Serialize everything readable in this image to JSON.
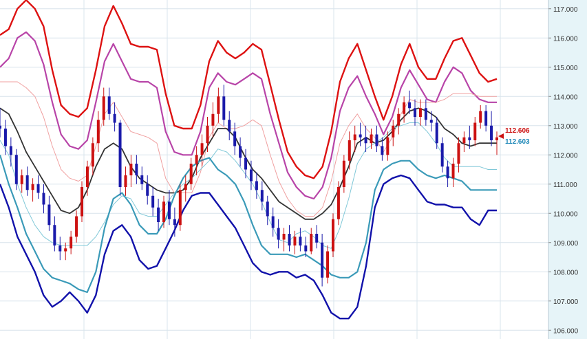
{
  "chart_data": {
    "type": "line",
    "title": "",
    "xlabel": "",
    "ylabel": "",
    "ylim": [
      105.7,
      117.3
    ],
    "y_ticks": [
      "106.000",
      "107.000",
      "108.000",
      "109.000",
      "110.000",
      "111.000",
      "112.000",
      "113.000",
      "114.000",
      "115.000",
      "116.000",
      "117.000"
    ],
    "grid": true,
    "legend": "none",
    "price_tags": [
      {
        "text": "112.606",
        "value": 112.606,
        "color": "#cc1111"
      },
      {
        "text": "112.603",
        "value": 112.603,
        "color": "#1e88b8"
      }
    ],
    "colors": {
      "up_candle": "#cc1111",
      "down_candle": "#1a1aaa",
      "outer_upper": "#dd1111",
      "outer_lower": "#1111aa",
      "band2_upper": "#b844a8",
      "band2_lower": "#3a9ab8",
      "band1_upper": "#f0a0a0",
      "band1_lower": "#80c8d8",
      "middle": "#333333",
      "axis_bg": "#e6f4f8",
      "grid": "#d8e4ec"
    },
    "series": [
      {
        "key": "outer_upper",
        "values": [
          116.1,
          116.3,
          117.0,
          117.3,
          117.0,
          116.4,
          114.9,
          113.7,
          113.4,
          113.3,
          113.6,
          114.9,
          116.4,
          117.1,
          116.5,
          115.8,
          115.7,
          115.7,
          115.6,
          114.1,
          113.0,
          112.9,
          112.9,
          113.7,
          115.2,
          115.9,
          115.5,
          115.3,
          115.5,
          115.8,
          115.6,
          114.4,
          113.2,
          112.1,
          111.6,
          111.3,
          111.2,
          111.6,
          112.8,
          114.5,
          115.3,
          115.8,
          114.9,
          114.0,
          113.2,
          114.0,
          115.1,
          115.8,
          115.0,
          114.6,
          114.6,
          115.3,
          115.9,
          116.0,
          115.4,
          114.8,
          114.5,
          114.6
        ]
      },
      {
        "key": "band2_upper",
        "values": [
          115.0,
          115.3,
          116.0,
          116.2,
          115.9,
          115.1,
          113.8,
          112.7,
          112.3,
          112.2,
          112.5,
          113.8,
          115.2,
          115.8,
          115.2,
          114.6,
          114.5,
          114.5,
          114.3,
          112.8,
          112.1,
          112.0,
          112.0,
          112.8,
          114.3,
          114.8,
          114.5,
          114.4,
          114.6,
          114.8,
          114.6,
          113.4,
          112.4,
          111.4,
          110.9,
          110.6,
          110.5,
          110.9,
          111.9,
          113.5,
          114.3,
          114.7,
          114.0,
          113.4,
          112.7,
          113.3,
          114.3,
          114.9,
          114.4,
          113.9,
          113.8,
          114.5,
          115.0,
          114.8,
          114.2,
          113.9,
          113.8,
          113.8
        ]
      },
      {
        "key": "band1_upper",
        "values": [
          114.5,
          114.5,
          114.5,
          114.3,
          114.0,
          113.3,
          112.3,
          111.5,
          111.2,
          111.1,
          111.3,
          112.3,
          113.4,
          113.8,
          113.3,
          112.8,
          112.7,
          112.6,
          112.4,
          111.2,
          110.7,
          110.7,
          110.7,
          111.4,
          112.6,
          113.1,
          112.9,
          112.9,
          113.0,
          113.2,
          113.0,
          112.0,
          111.1,
          110.5,
          110.1,
          109.9,
          109.9,
          110.2,
          111.1,
          112.4,
          113.0,
          113.4,
          112.9,
          112.6,
          112.1,
          112.6,
          113.4,
          113.9,
          113.8,
          113.8,
          113.8,
          113.9,
          114.1,
          114.1,
          114.1,
          114.0,
          114.0,
          114.0
        ]
      },
      {
        "key": "middle",
        "values": [
          113.6,
          113.4,
          112.8,
          112.1,
          111.6,
          111.1,
          110.6,
          110.1,
          110.0,
          110.2,
          110.8,
          111.6,
          112.2,
          112.4,
          112.2,
          111.6,
          111.2,
          111.0,
          110.8,
          110.7,
          110.7,
          110.8,
          111.2,
          111.9,
          112.4,
          112.9,
          112.9,
          112.6,
          112.0,
          111.5,
          111.2,
          110.8,
          110.4,
          110.2,
          110.0,
          109.8,
          109.8,
          110.0,
          110.3,
          110.9,
          111.6,
          112.4,
          112.6,
          112.4,
          112.5,
          112.8,
          113.2,
          113.5,
          113.6,
          113.5,
          113.3,
          112.9,
          112.7,
          112.4,
          112.3,
          112.4,
          112.4,
          112.4
        ]
      },
      {
        "key": "band1_lower",
        "values": [
          112.5,
          112.0,
          111.0,
          110.2,
          109.6,
          109.2,
          109.0,
          108.9,
          108.9,
          108.9,
          108.9,
          109.2,
          109.7,
          110.3,
          110.6,
          110.5,
          110.0,
          109.9,
          109.9,
          110.3,
          110.7,
          111.0,
          111.2,
          111.5,
          111.8,
          112.2,
          112.1,
          111.8,
          111.4,
          111.0,
          110.4,
          109.7,
          109.1,
          109.0,
          109.3,
          109.4,
          109.2,
          108.9,
          108.8,
          109.5,
          110.5,
          111.7,
          112.2,
          112.4,
          112.6,
          112.9,
          113.0,
          113.1,
          113.1,
          112.8,
          112.4,
          111.9,
          111.6,
          111.6,
          111.6,
          111.6,
          111.5,
          111.5
        ]
      },
      {
        "key": "band2_lower",
        "values": [
          112.0,
          111.0,
          110.2,
          109.3,
          108.7,
          108.1,
          107.8,
          107.7,
          107.6,
          107.4,
          107.3,
          108.0,
          109.5,
          110.5,
          110.7,
          110.3,
          109.6,
          109.3,
          109.3,
          109.8,
          110.6,
          111.2,
          111.6,
          111.8,
          111.9,
          111.5,
          111.3,
          111.0,
          110.4,
          109.6,
          108.9,
          108.6,
          108.6,
          108.6,
          108.5,
          108.6,
          108.4,
          108.2,
          107.9,
          107.8,
          107.8,
          108.0,
          109.0,
          110.8,
          111.5,
          111.7,
          111.8,
          111.8,
          111.5,
          111.3,
          111.2,
          111.3,
          111.2,
          111.1,
          110.8,
          110.8,
          110.8,
          110.8
        ]
      },
      {
        "key": "outer_lower",
        "values": [
          111.0,
          110.2,
          109.2,
          108.6,
          108.0,
          107.2,
          106.8,
          107.0,
          107.3,
          107.0,
          106.6,
          107.2,
          108.6,
          109.4,
          109.6,
          109.2,
          108.4,
          108.1,
          108.2,
          108.8,
          109.4,
          110.1,
          110.6,
          110.7,
          110.7,
          110.3,
          109.9,
          109.5,
          108.9,
          108.3,
          108.0,
          107.9,
          108.0,
          108.0,
          107.8,
          107.9,
          107.7,
          107.2,
          106.6,
          106.4,
          106.4,
          106.8,
          108.2,
          110.2,
          111.0,
          111.2,
          111.3,
          111.2,
          110.8,
          110.4,
          110.3,
          110.3,
          110.2,
          110.2,
          109.8,
          109.6,
          110.1,
          110.1
        ]
      }
    ],
    "candles": [
      [
        113.0,
        113.6,
        112.6,
        112.9
      ],
      [
        112.9,
        113.2,
        112.0,
        112.3
      ],
      [
        112.3,
        112.6,
        111.6,
        112.0
      ],
      [
        112.0,
        112.2,
        110.8,
        111.0
      ],
      [
        111.0,
        111.5,
        110.7,
        111.3
      ],
      [
        111.3,
        111.6,
        110.6,
        110.8
      ],
      [
        110.8,
        111.2,
        110.4,
        111.0
      ],
      [
        111.0,
        111.3,
        110.5,
        110.7
      ],
      [
        110.7,
        111.0,
        110.0,
        110.3
      ],
      [
        110.3,
        110.6,
        109.4,
        109.6
      ],
      [
        109.6,
        109.9,
        108.7,
        108.9
      ],
      [
        108.9,
        109.2,
        108.4,
        108.7
      ],
      [
        108.7,
        109.0,
        108.4,
        108.8
      ],
      [
        108.8,
        109.4,
        108.6,
        109.2
      ],
      [
        109.2,
        110.1,
        109.0,
        109.9
      ],
      [
        109.9,
        111.1,
        109.7,
        110.9
      ],
      [
        110.9,
        111.8,
        110.6,
        111.6
      ],
      [
        111.6,
        112.6,
        111.3,
        112.4
      ],
      [
        112.4,
        113.5,
        112.1,
        113.2
      ],
      [
        113.2,
        114.3,
        113.0,
        114.0
      ],
      [
        114.0,
        114.3,
        113.2,
        113.4
      ],
      [
        113.4,
        113.8,
        112.8,
        113.1
      ],
      [
        113.1,
        113.2,
        110.6,
        110.9
      ],
      [
        110.9,
        111.6,
        110.6,
        111.3
      ],
      [
        111.3,
        112.0,
        110.9,
        111.7
      ],
      [
        111.7,
        112.0,
        111.0,
        111.3
      ],
      [
        111.3,
        111.6,
        110.8,
        111.0
      ],
      [
        111.0,
        111.3,
        110.3,
        110.6
      ],
      [
        110.6,
        110.9,
        109.9,
        110.2
      ],
      [
        110.2,
        110.5,
        109.4,
        109.7
      ],
      [
        109.7,
        110.6,
        109.5,
        110.4
      ],
      [
        110.4,
        110.8,
        109.6,
        109.8
      ],
      [
        109.8,
        110.2,
        109.2,
        109.6
      ],
      [
        109.6,
        111.0,
        109.4,
        110.8
      ],
      [
        110.8,
        111.3,
        110.4,
        111.0
      ],
      [
        111.0,
        111.9,
        110.8,
        111.7
      ],
      [
        111.7,
        112.3,
        111.3,
        112.0
      ],
      [
        112.0,
        112.7,
        111.6,
        112.4
      ],
      [
        112.4,
        113.3,
        112.1,
        113.0
      ],
      [
        113.0,
        113.8,
        112.6,
        113.4
      ],
      [
        113.4,
        114.3,
        113.1,
        114.0
      ],
      [
        114.0,
        114.4,
        113.0,
        113.2
      ],
      [
        113.2,
        113.5,
        112.5,
        112.8
      ],
      [
        112.8,
        113.1,
        112.0,
        112.3
      ],
      [
        112.3,
        112.6,
        111.6,
        111.9
      ],
      [
        111.9,
        112.2,
        111.2,
        111.5
      ],
      [
        111.5,
        111.8,
        110.8,
        111.1
      ],
      [
        111.1,
        111.4,
        110.5,
        110.8
      ],
      [
        110.8,
        111.1,
        110.1,
        110.4
      ],
      [
        110.4,
        110.6,
        109.6,
        109.9
      ],
      [
        109.9,
        110.2,
        109.2,
        109.5
      ],
      [
        109.5,
        109.8,
        108.8,
        109.1
      ],
      [
        109.1,
        109.5,
        108.7,
        109.3
      ],
      [
        109.3,
        109.6,
        108.7,
        108.9
      ],
      [
        108.9,
        109.4,
        108.6,
        109.2
      ],
      [
        109.2,
        109.5,
        108.7,
        108.9
      ],
      [
        108.9,
        109.2,
        108.5,
        108.7
      ],
      [
        108.7,
        109.5,
        108.6,
        109.3
      ],
      [
        109.3,
        109.6,
        108.8,
        109.0
      ],
      [
        109.0,
        109.3,
        107.5,
        107.8
      ],
      [
        107.8,
        108.9,
        107.6,
        108.7
      ],
      [
        108.7,
        110.0,
        108.5,
        109.8
      ],
      [
        109.8,
        111.1,
        109.6,
        110.9
      ],
      [
        110.9,
        112.0,
        110.7,
        111.8
      ],
      [
        111.8,
        112.8,
        111.5,
        112.5
      ],
      [
        112.5,
        113.0,
        112.1,
        112.7
      ],
      [
        112.7,
        113.1,
        112.3,
        112.6
      ],
      [
        112.6,
        113.0,
        112.1,
        112.4
      ],
      [
        112.4,
        112.9,
        112.2,
        112.7
      ],
      [
        112.7,
        113.0,
        112.1,
        112.3
      ],
      [
        112.3,
        112.6,
        111.8,
        112.0
      ],
      [
        112.0,
        112.8,
        111.8,
        112.6
      ],
      [
        112.6,
        113.2,
        112.3,
        113.0
      ],
      [
        113.0,
        113.6,
        112.7,
        113.4
      ],
      [
        113.4,
        114.0,
        113.1,
        113.8
      ],
      [
        113.8,
        114.2,
        113.4,
        113.6
      ],
      [
        113.6,
        113.9,
        113.0,
        113.3
      ],
      [
        113.3,
        113.9,
        113.0,
        113.6
      ],
      [
        113.6,
        113.9,
        113.0,
        113.2
      ],
      [
        113.2,
        113.5,
        112.8,
        113.1
      ],
      [
        113.1,
        113.3,
        112.2,
        112.4
      ],
      [
        112.4,
        112.6,
        111.4,
        111.6
      ],
      [
        111.6,
        111.8,
        110.9,
        111.2
      ],
      [
        111.2,
        111.9,
        110.9,
        111.7
      ],
      [
        111.7,
        112.6,
        111.4,
        112.4
      ],
      [
        112.4,
        112.8,
        112.1,
        112.6
      ],
      [
        112.6,
        113.0,
        112.2,
        112.5
      ],
      [
        112.5,
        113.3,
        112.3,
        113.1
      ],
      [
        113.1,
        113.7,
        112.9,
        113.5
      ],
      [
        113.5,
        113.7,
        112.8,
        113.0
      ],
      [
        113.0,
        113.5,
        112.3,
        112.5
      ],
      [
        112.5,
        112.8,
        112.0,
        112.6
      ]
    ]
  }
}
